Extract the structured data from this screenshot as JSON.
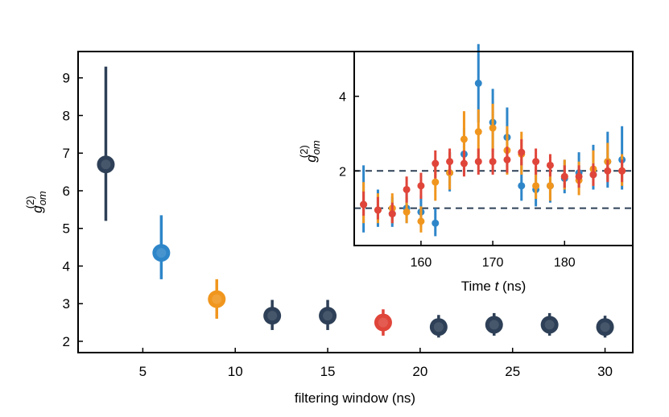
{
  "colors": {
    "dark": "#2e4057",
    "blue": "#2e86c9",
    "orange": "#f0961e",
    "red": "#e0453a",
    "dashed": "#2e4057",
    "axes": "#000000"
  },
  "chart_data": [
    {
      "id": "main",
      "type": "scatter",
      "title": "",
      "xlabel": "filtering window (ns)",
      "ylabel_base": "g",
      "ylabel_sub": "om",
      "ylabel_sup": "(2)",
      "xlim": [
        1.5,
        31.5
      ],
      "ylim": [
        1.7,
        9.7
      ],
      "xticks": [
        5,
        10,
        15,
        20,
        25,
        30
      ],
      "yticks": [
        2,
        3,
        4,
        5,
        6,
        7,
        8,
        9
      ],
      "grid": false,
      "points": [
        {
          "x": 3,
          "y": 6.7,
          "ylow": 5.2,
          "yhigh": 9.3,
          "color": "dark"
        },
        {
          "x": 6,
          "y": 4.35,
          "ylow": 3.65,
          "yhigh": 5.35,
          "color": "blue"
        },
        {
          "x": 9,
          "y": 3.12,
          "ylow": 2.6,
          "yhigh": 3.65,
          "color": "orange"
        },
        {
          "x": 12,
          "y": 2.68,
          "ylow": 2.3,
          "yhigh": 3.1,
          "color": "dark"
        },
        {
          "x": 15,
          "y": 2.68,
          "ylow": 2.3,
          "yhigh": 3.1,
          "color": "dark"
        },
        {
          "x": 18,
          "y": 2.5,
          "ylow": 2.15,
          "yhigh": 2.85,
          "color": "red"
        },
        {
          "x": 21,
          "y": 2.38,
          "ylow": 2.1,
          "yhigh": 2.7,
          "color": "dark"
        },
        {
          "x": 24,
          "y": 2.44,
          "ylow": 2.15,
          "yhigh": 2.75,
          "color": "dark"
        },
        {
          "x": 27,
          "y": 2.44,
          "ylow": 2.15,
          "yhigh": 2.75,
          "color": "dark"
        },
        {
          "x": 30,
          "y": 2.38,
          "ylow": 2.1,
          "yhigh": 2.68,
          "color": "dark"
        }
      ]
    },
    {
      "id": "inset",
      "type": "scatter",
      "title": "",
      "xlabel_text": "Time ",
      "xlabel_var": "t",
      "xlabel_unit": " (ns)",
      "ylabel_base": "g",
      "ylabel_sub": "om",
      "ylabel_sup": "(2)",
      "xlim": [
        150.7,
        189.5
      ],
      "ylim": [
        0,
        5.2
      ],
      "xticks": [
        160,
        170,
        180
      ],
      "yticks": [
        2,
        4
      ],
      "grid": false,
      "hlines": [
        1,
        2
      ],
      "series": [
        {
          "color": "blue",
          "points": [
            {
              "x": 152,
              "y": 1.1,
              "ylow": 0.35,
              "yhigh": 2.15
            },
            {
              "x": 154,
              "y": 0.95,
              "ylow": 0.5,
              "yhigh": 1.5
            },
            {
              "x": 156,
              "y": 0.85,
              "ylow": 0.5,
              "yhigh": 1.3
            },
            {
              "x": 158,
              "y": 1.0,
              "ylow": 0.6,
              "yhigh": 1.5
            },
            {
              "x": 160,
              "y": 0.9,
              "ylow": 0.5,
              "yhigh": 1.35
            },
            {
              "x": 162,
              "y": 0.6,
              "ylow": 0.25,
              "yhigh": 1.0
            },
            {
              "x": 164,
              "y": 1.95,
              "ylow": 1.45,
              "yhigh": 2.5
            },
            {
              "x": 166,
              "y": 2.45,
              "ylow": 1.9,
              "yhigh": 3.15
            },
            {
              "x": 168,
              "y": 4.35,
              "ylow": 3.3,
              "yhigh": 5.4
            },
            {
              "x": 170,
              "y": 3.3,
              "ylow": 2.5,
              "yhigh": 4.2
            },
            {
              "x": 172,
              "y": 2.9,
              "ylow": 2.1,
              "yhigh": 3.7
            },
            {
              "x": 174,
              "y": 1.6,
              "ylow": 1.2,
              "yhigh": 2.3
            },
            {
              "x": 176,
              "y": 1.5,
              "ylow": 1.05,
              "yhigh": 2.0
            },
            {
              "x": 178,
              "y": 1.6,
              "ylow": 1.15,
              "yhigh": 2.1
            },
            {
              "x": 180,
              "y": 1.8,
              "ylow": 1.4,
              "yhigh": 2.3
            },
            {
              "x": 182,
              "y": 1.95,
              "ylow": 1.55,
              "yhigh": 2.5
            },
            {
              "x": 184,
              "y": 1.9,
              "ylow": 1.5,
              "yhigh": 2.7
            },
            {
              "x": 186,
              "y": 2.25,
              "ylow": 1.55,
              "yhigh": 3.05
            },
            {
              "x": 188,
              "y": 2.3,
              "ylow": 1.5,
              "yhigh": 3.2
            }
          ]
        },
        {
          "color": "orange",
          "points": [
            {
              "x": 152,
              "y": 1.1,
              "ylow": 0.6,
              "yhigh": 1.7
            },
            {
              "x": 154,
              "y": 0.95,
              "ylow": 0.6,
              "yhigh": 1.4
            },
            {
              "x": 156,
              "y": 1.0,
              "ylow": 0.6,
              "yhigh": 1.4
            },
            {
              "x": 158,
              "y": 0.9,
              "ylow": 0.6,
              "yhigh": 1.3
            },
            {
              "x": 160,
              "y": 0.65,
              "ylow": 0.35,
              "yhigh": 1.05
            },
            {
              "x": 162,
              "y": 1.7,
              "ylow": 1.2,
              "yhigh": 2.2
            },
            {
              "x": 164,
              "y": 1.95,
              "ylow": 1.5,
              "yhigh": 2.5
            },
            {
              "x": 166,
              "y": 2.85,
              "ylow": 2.2,
              "yhigh": 3.6
            },
            {
              "x": 168,
              "y": 3.05,
              "ylow": 2.25,
              "yhigh": 3.65
            },
            {
              "x": 170,
              "y": 3.15,
              "ylow": 2.25,
              "yhigh": 3.8
            },
            {
              "x": 172,
              "y": 2.55,
              "ylow": 1.9,
              "yhigh": 3.2
            },
            {
              "x": 174,
              "y": 2.45,
              "ylow": 1.9,
              "yhigh": 3.05
            },
            {
              "x": 176,
              "y": 1.6,
              "ylow": 1.25,
              "yhigh": 2.1
            },
            {
              "x": 178,
              "y": 1.6,
              "ylow": 1.2,
              "yhigh": 2.05
            },
            {
              "x": 180,
              "y": 1.85,
              "ylow": 1.5,
              "yhigh": 2.3
            },
            {
              "x": 182,
              "y": 1.75,
              "ylow": 1.35,
              "yhigh": 2.25
            },
            {
              "x": 184,
              "y": 2.05,
              "ylow": 1.6,
              "yhigh": 2.55
            },
            {
              "x": 186,
              "y": 2.25,
              "ylow": 1.75,
              "yhigh": 2.75
            },
            {
              "x": 188,
              "y": 2.0,
              "ylow": 1.6,
              "yhigh": 2.45
            }
          ]
        },
        {
          "color": "red",
          "points": [
            {
              "x": 152,
              "y": 1.1,
              "ylow": 0.8,
              "yhigh": 1.45
            },
            {
              "x": 154,
              "y": 0.95,
              "ylow": 0.7,
              "yhigh": 1.3
            },
            {
              "x": 156,
              "y": 0.85,
              "ylow": 0.6,
              "yhigh": 1.15
            },
            {
              "x": 158,
              "y": 1.5,
              "ylow": 1.15,
              "yhigh": 1.85
            },
            {
              "x": 160,
              "y": 1.6,
              "ylow": 1.25,
              "yhigh": 1.95
            },
            {
              "x": 162,
              "y": 2.2,
              "ylow": 1.8,
              "yhigh": 2.55
            },
            {
              "x": 164,
              "y": 2.25,
              "ylow": 1.9,
              "yhigh": 2.6
            },
            {
              "x": 166,
              "y": 2.2,
              "ylow": 1.85,
              "yhigh": 2.55
            },
            {
              "x": 168,
              "y": 2.25,
              "ylow": 1.9,
              "yhigh": 2.6
            },
            {
              "x": 170,
              "y": 2.25,
              "ylow": 1.9,
              "yhigh": 2.6
            },
            {
              "x": 172,
              "y": 2.3,
              "ylow": 1.95,
              "yhigh": 2.65
            },
            {
              "x": 174,
              "y": 2.5,
              "ylow": 2.15,
              "yhigh": 2.85
            },
            {
              "x": 176,
              "y": 2.25,
              "ylow": 1.9,
              "yhigh": 2.6
            },
            {
              "x": 178,
              "y": 2.15,
              "ylow": 1.85,
              "yhigh": 2.45
            },
            {
              "x": 180,
              "y": 1.85,
              "ylow": 1.55,
              "yhigh": 2.15
            },
            {
              "x": 182,
              "y": 1.85,
              "ylow": 1.55,
              "yhigh": 2.15
            },
            {
              "x": 184,
              "y": 1.9,
              "ylow": 1.6,
              "yhigh": 2.2
            },
            {
              "x": 186,
              "y": 2.0,
              "ylow": 1.7,
              "yhigh": 2.3
            },
            {
              "x": 188,
              "y": 2.0,
              "ylow": 1.7,
              "yhigh": 2.3
            }
          ]
        }
      ]
    }
  ]
}
